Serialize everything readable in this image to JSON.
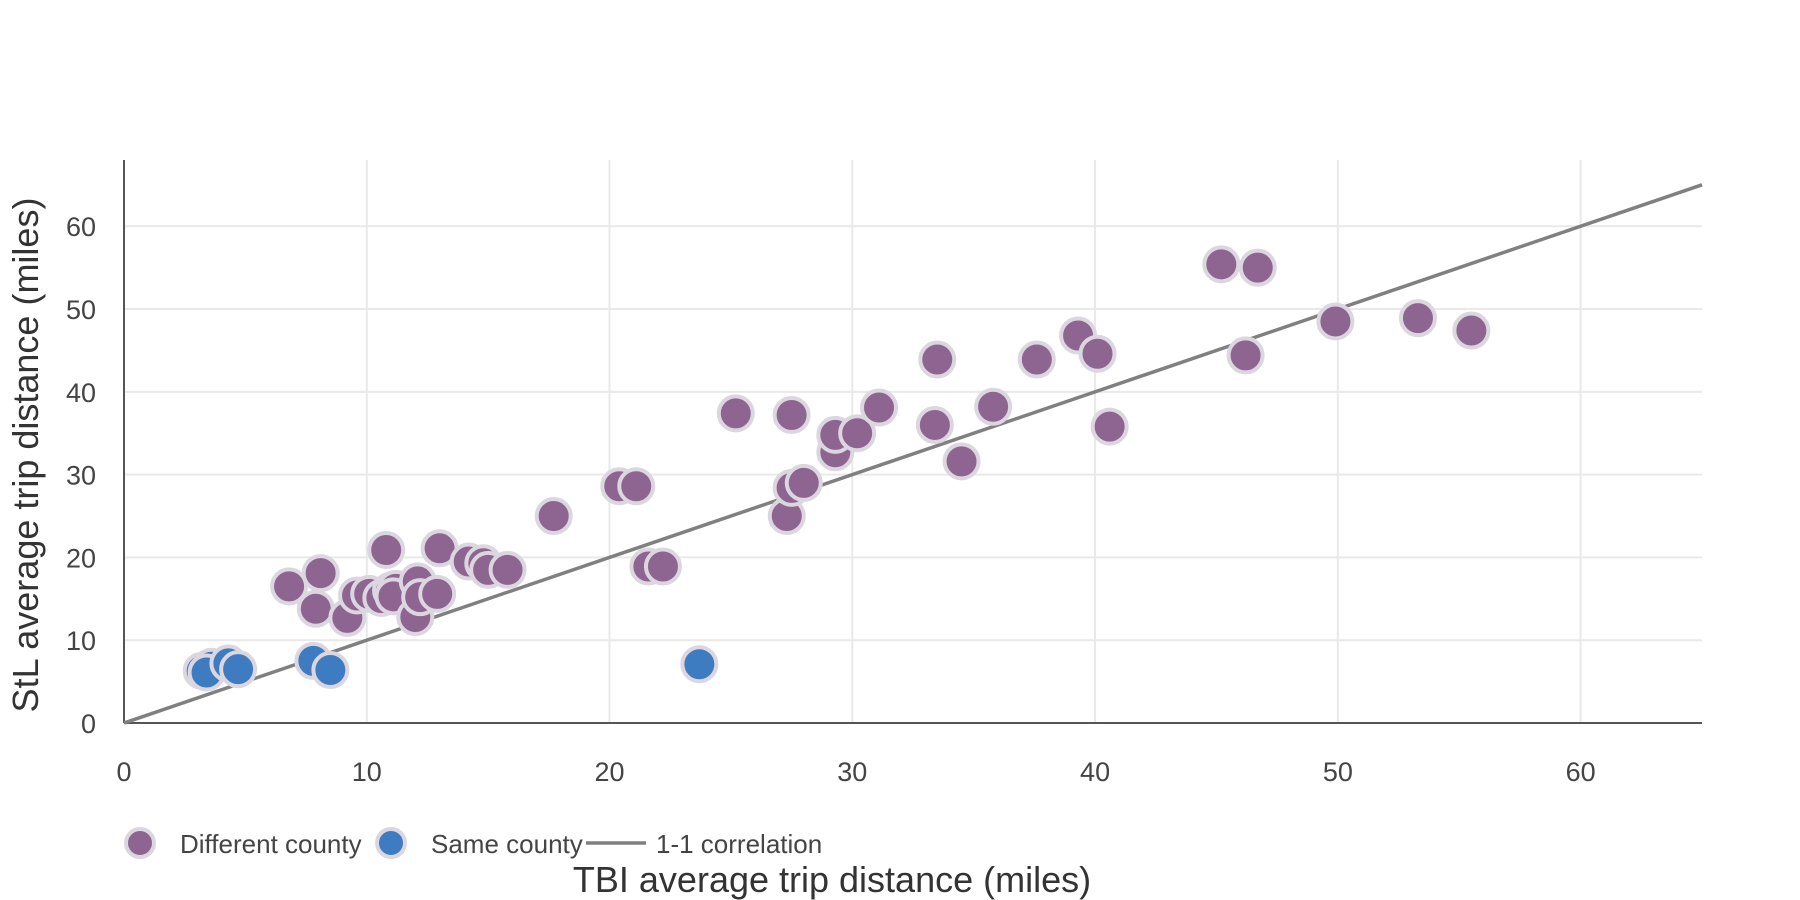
{
  "chart_data": {
    "type": "scatter",
    "title": "",
    "xlabel": "TBI average trip distance (miles)",
    "ylabel": "StL average trip distance (miles)",
    "xlim": [
      0,
      65
    ],
    "ylim": [
      0,
      68
    ],
    "x_ticks": [
      0,
      10,
      20,
      30,
      40,
      50,
      60
    ],
    "y_ticks": [
      0,
      10,
      20,
      30,
      40,
      50,
      60
    ],
    "grid": true,
    "legend_position": "bottom-left",
    "series": [
      {
        "name": "Different county",
        "color": "#8e6590",
        "marker": "circle",
        "points": [
          [
            6.8,
            16.5
          ],
          [
            8.1,
            18.1
          ],
          [
            7.9,
            13.8
          ],
          [
            9.2,
            12.7
          ],
          [
            9.6,
            15.4
          ],
          [
            10.1,
            15.6
          ],
          [
            10.6,
            15.1
          ],
          [
            10.8,
            20.9
          ],
          [
            11.0,
            16.0
          ],
          [
            11.2,
            16.2
          ],
          [
            11.1,
            15.3
          ],
          [
            12.0,
            12.8
          ],
          [
            12.1,
            17.1
          ],
          [
            12.2,
            15.2
          ],
          [
            12.9,
            15.6
          ],
          [
            13.0,
            21.1
          ],
          [
            14.2,
            19.5
          ],
          [
            14.8,
            19.3
          ],
          [
            15.0,
            18.5
          ],
          [
            15.8,
            18.5
          ],
          [
            17.7,
            25.0
          ],
          [
            20.4,
            28.6
          ],
          [
            21.1,
            28.6
          ],
          [
            21.6,
            18.9
          ],
          [
            22.2,
            18.9
          ],
          [
            25.2,
            37.4
          ],
          [
            27.3,
            25.0
          ],
          [
            27.5,
            28.4
          ],
          [
            27.5,
            37.2
          ],
          [
            28.0,
            29.0
          ],
          [
            29.3,
            32.7
          ],
          [
            29.3,
            34.8
          ],
          [
            30.2,
            35.0
          ],
          [
            31.1,
            38.1
          ],
          [
            33.4,
            36.0
          ],
          [
            33.5,
            43.9
          ],
          [
            34.5,
            31.6
          ],
          [
            35.8,
            38.2
          ],
          [
            37.6,
            43.9
          ],
          [
            39.3,
            46.8
          ],
          [
            40.1,
            44.6
          ],
          [
            40.6,
            35.8
          ],
          [
            45.2,
            55.4
          ],
          [
            46.2,
            44.4
          ],
          [
            46.7,
            55.0
          ],
          [
            49.9,
            48.5
          ],
          [
            53.3,
            48.9
          ],
          [
            55.5,
            47.4
          ]
        ]
      },
      {
        "name": "Same county",
        "color": "#3d7cc0",
        "marker": "circle",
        "points": [
          [
            3.2,
            6.3
          ],
          [
            3.6,
            6.8
          ],
          [
            3.4,
            6.1
          ],
          [
            4.3,
            7.2
          ],
          [
            4.7,
            6.5
          ],
          [
            7.8,
            7.5
          ],
          [
            8.5,
            6.4
          ],
          [
            23.7,
            7.1
          ]
        ]
      },
      {
        "name": "1-1 correlation",
        "color": "#808080",
        "marker": "line",
        "points": [
          [
            0,
            0
          ],
          [
            65,
            65
          ]
        ]
      }
    ]
  }
}
